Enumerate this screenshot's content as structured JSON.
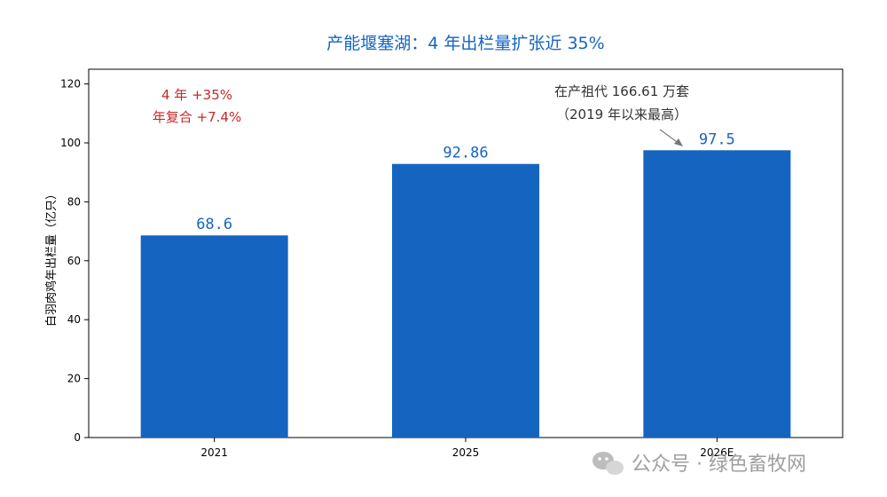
{
  "chart_data": {
    "type": "bar",
    "title": "产能堰塞湖：4 年出栏量扩张近 35%",
    "categories": [
      "2021",
      "2025",
      "2026E"
    ],
    "values": [
      68.6,
      92.86,
      97.5
    ],
    "value_labels": [
      "68.6",
      "92.86",
      "97.5"
    ],
    "xlabel": "",
    "ylabel": "白羽肉鸡年出栏量（亿只）",
    "ylim": [
      0,
      125
    ],
    "yticks": [
      0,
      20,
      40,
      60,
      80,
      100,
      120
    ],
    "bar_color": "#1565c0",
    "grid": false,
    "annotations": {
      "growth_line1": "4 年 +35%",
      "growth_line2": "年复合 +7.4%",
      "stock_line1": "在产祖代 166.61 万套",
      "stock_line2": "（2019 年以来最高）"
    }
  },
  "watermark": {
    "text": "公众号 · 绿色畜牧网",
    "icon": "wechat-icon"
  }
}
